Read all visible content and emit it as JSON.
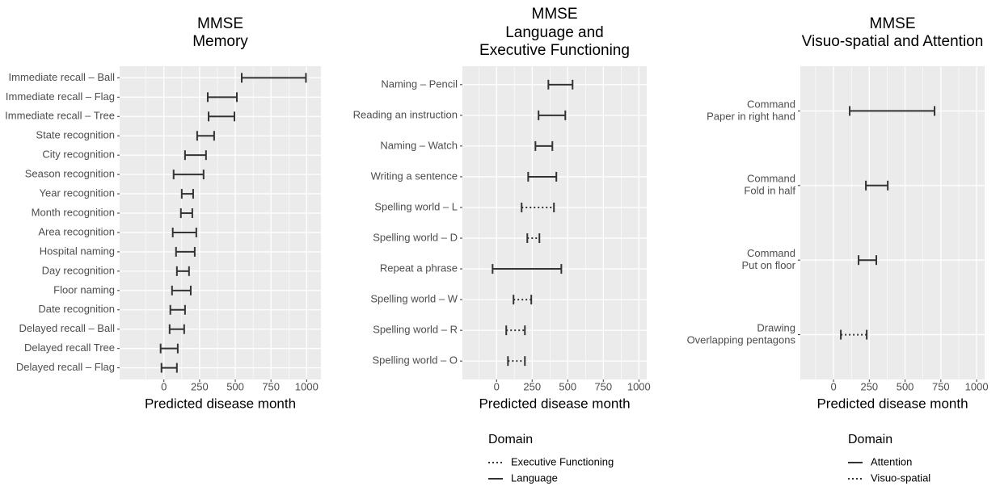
{
  "chart_data": [
    {
      "type": "interval",
      "title": [
        "MMSE",
        "Memory"
      ],
      "x_label": "Predicted disease month",
      "categories": [
        "Immediate recall – Ball",
        "Immediate recall – Flag",
        "Immediate recall – Tree",
        "State recognition",
        "City recognition",
        "Season recognition",
        "Year recognition",
        "Month recognition",
        "Area recognition",
        "Hospital naming",
        "Day recognition",
        "Floor naming",
        "Date recognition",
        "Delayed recall – Ball",
        "Delayed recall Tree",
        "Delayed recall – Flag"
      ],
      "low": [
        545,
        307,
        313,
        233,
        148,
        68,
        125,
        119,
        62,
        85,
        91,
        57,
        45,
        40,
        -23,
        -17
      ],
      "high": [
        995,
        511,
        494,
        352,
        295,
        278,
        205,
        199,
        227,
        216,
        176,
        188,
        148,
        142,
        97,
        91
      ],
      "linestyle": "solid",
      "color": "#333333",
      "xlim": [
        -310,
        1100
      ],
      "xticks": [
        0,
        250,
        500,
        750,
        1000
      ],
      "grid": true
    },
    {
      "type": "interval",
      "title": [
        "MMSE",
        "Language and",
        "Executive Functioning"
      ],
      "x_label": "Predicted disease month",
      "categories": [
        "Naming – Pencil",
        "Reading an instruction",
        "Naming – Watch",
        "Writing a sentence",
        "Spelling world – L",
        "Spelling world – D",
        "Repeat a phrase",
        "Spelling world – W",
        "Spelling world – R",
        "Spelling world – O"
      ],
      "low": [
        364,
        295,
        273,
        222,
        176,
        216,
        -28,
        119,
        68,
        80
      ],
      "high": [
        534,
        483,
        392,
        420,
        403,
        301,
        455,
        244,
        199,
        199
      ],
      "domain": [
        "Language",
        "Language",
        "Language",
        "Language",
        "Executive Functioning",
        "Executive Functioning",
        "Language",
        "Executive Functioning",
        "Executive Functioning",
        "Executive Functioning"
      ],
      "legend_title": "Domain",
      "domains": [
        {
          "name": "Executive Functioning",
          "linestyle": "dotted"
        },
        {
          "name": "Language",
          "linestyle": "solid"
        }
      ],
      "color": "#333333",
      "xlim": [
        -240,
        1055
      ],
      "xticks": [
        0,
        250,
        500,
        750,
        1000
      ],
      "grid": true
    },
    {
      "type": "interval",
      "title": [
        "MMSE",
        "Visuo-spatial and Attention"
      ],
      "x_label": "Predicted disease month",
      "categories": [
        [
          "Command",
          "Paper in right hand"
        ],
        [
          "Command",
          "Fold in half"
        ],
        [
          "Command",
          "Put on floor"
        ],
        [
          "Drawing",
          "Overlapping pentagons"
        ]
      ],
      "low": [
        113,
        226,
        175,
        51
      ],
      "high": [
        706,
        379,
        299,
        232
      ],
      "domain": [
        "Attention",
        "Attention",
        "Attention",
        "Visuo-spatial"
      ],
      "legend_title": "Domain",
      "domains": [
        {
          "name": "Attention",
          "linestyle": "solid"
        },
        {
          "name": "Visuo-spatial",
          "linestyle": "dotted"
        }
      ],
      "color": "#333333",
      "xlim": [
        -232,
        1056
      ],
      "xticks": [
        0,
        250,
        500,
        750,
        1000
      ],
      "grid": true
    }
  ]
}
